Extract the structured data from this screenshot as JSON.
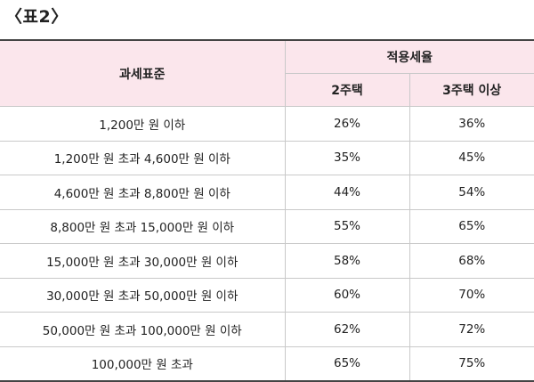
{
  "caption": "〈표2〉",
  "table": {
    "header": {
      "base": "과세표준",
      "rate_group": "적용세율",
      "col_2house": "2주택",
      "col_3house": "3주택 이상"
    },
    "rows": [
      {
        "bracket": "1,200만 원 이하",
        "rate2": "26%",
        "rate3": "36%"
      },
      {
        "bracket": "1,200만 원 초과 4,600만 원 이하",
        "rate2": "35%",
        "rate3": "45%"
      },
      {
        "bracket": "4,600만 원 초과 8,800만 원 이하",
        "rate2": "44%",
        "rate3": "54%"
      },
      {
        "bracket": "8,800만 원 초과 15,000만 원 이하",
        "rate2": "55%",
        "rate3": "65%"
      },
      {
        "bracket": "15,000만 원 초과 30,000만 원 이하",
        "rate2": "58%",
        "rate3": "68%"
      },
      {
        "bracket": "30,000만 원 초과 50,000만 원 이하",
        "rate2": "60%",
        "rate3": "70%"
      },
      {
        "bracket": "50,000만 원 초과 100,000만 원 이하",
        "rate2": "62%",
        "rate3": "72%"
      },
      {
        "bracket": "100,000만 원 초과",
        "rate2": "65%",
        "rate3": "75%"
      }
    ]
  }
}
